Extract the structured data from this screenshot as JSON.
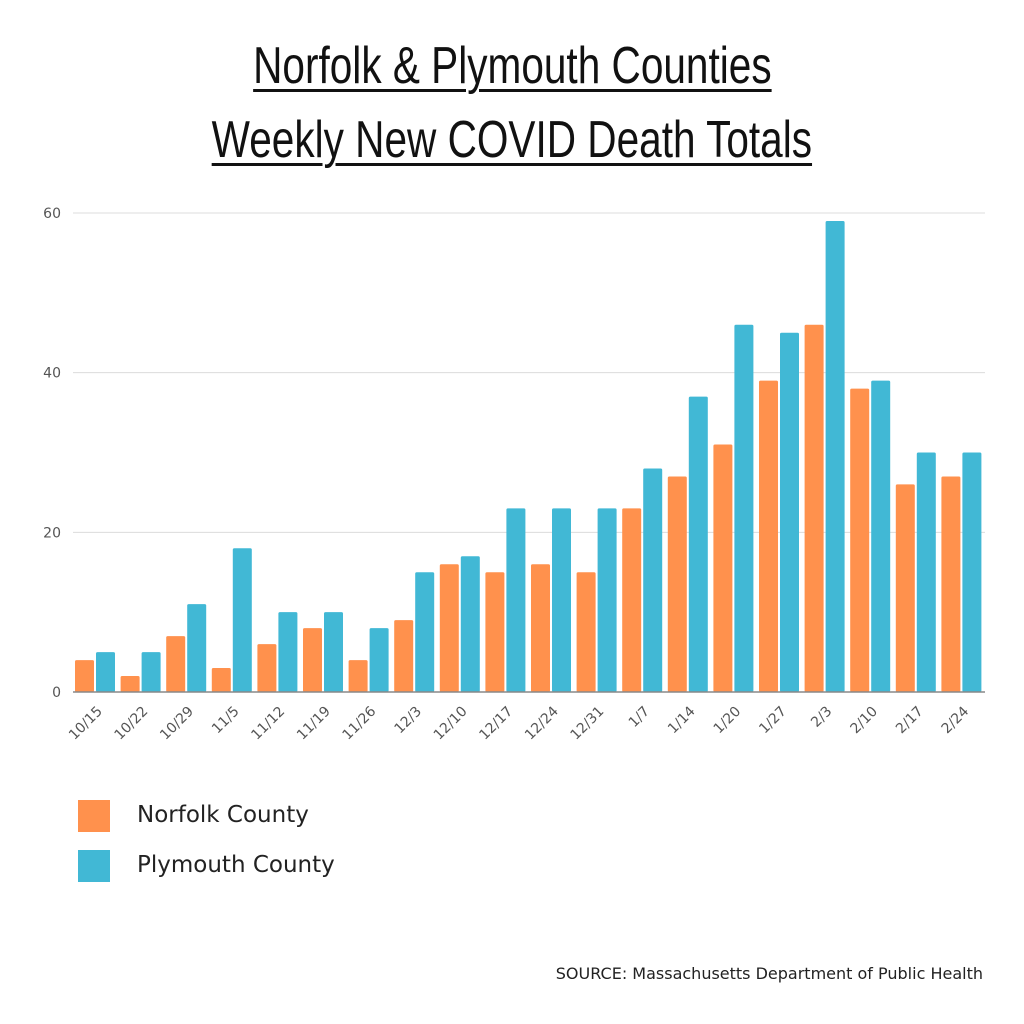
{
  "chart_data": {
    "type": "bar",
    "title": [
      "Norfolk & Plymouth Counties",
      "Weekly New COVID Death Totals"
    ],
    "xlabel": "",
    "ylabel": "",
    "ylim": [
      0,
      60
    ],
    "yticks": [
      0,
      20,
      40,
      60
    ],
    "grid": true,
    "legend_position": "bottom-left",
    "categories": [
      "10/15",
      "10/22",
      "10/29",
      "11/5",
      "11/12",
      "11/19",
      "11/26",
      "12/3",
      "12/10",
      "12/17",
      "12/24",
      "12/31",
      "1/7",
      "1/14",
      "1/20",
      "1/27",
      "2/3",
      "2/10",
      "2/17",
      "2/24"
    ],
    "series": [
      {
        "name": "Norfolk County",
        "color": "#FF914D",
        "values": [
          4,
          2,
          7,
          3,
          6,
          8,
          4,
          9,
          16,
          15,
          16,
          15,
          23,
          27,
          31,
          39,
          46,
          38,
          26,
          27
        ]
      },
      {
        "name": "Plymouth County",
        "color": "#41B8D5",
        "values": [
          5,
          5,
          11,
          18,
          10,
          10,
          8,
          15,
          17,
          23,
          23,
          23,
          28,
          37,
          46,
          45,
          59,
          39,
          30,
          30
        ]
      }
    ],
    "source": "SOURCE: Massachusetts Department of Public Health"
  }
}
